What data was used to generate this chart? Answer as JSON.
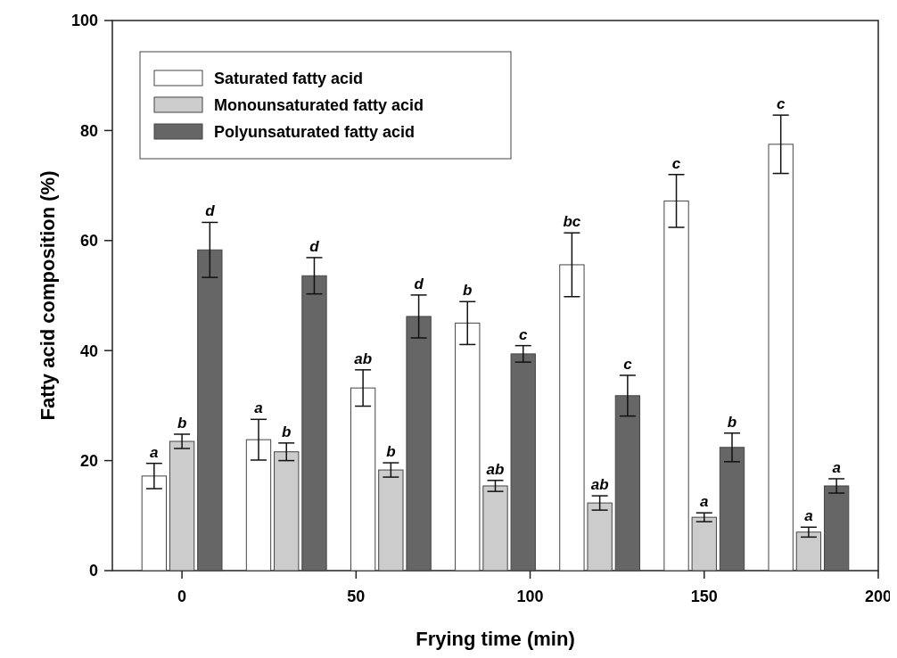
{
  "chart_data": {
    "type": "bar",
    "xlabel": "Frying time (min)",
    "ylabel": "Fatty acid composition (%)",
    "x": [
      0,
      30,
      60,
      90,
      120,
      150,
      180
    ],
    "xlim": [
      -20,
      200
    ],
    "xticks": [
      0,
      50,
      100,
      150,
      200
    ],
    "ylim": [
      0,
      100
    ],
    "yticks": [
      0,
      20,
      40,
      60,
      80,
      100
    ],
    "grid": false,
    "legend": "top left",
    "series": [
      {
        "name": "Saturated fatty acid",
        "color": "#ffffff",
        "values": [
          17.2,
          23.8,
          33.2,
          45.0,
          55.6,
          67.2,
          77.5
        ],
        "errors": [
          2.3,
          3.7,
          3.3,
          3.9,
          5.8,
          4.8,
          5.3
        ],
        "value_labels": [
          "a",
          "a",
          "ab",
          "b",
          "bc",
          "c",
          "c"
        ]
      },
      {
        "name": "Monounsaturated fatty acid",
        "color": "#cccccc",
        "values": [
          23.5,
          21.6,
          18.3,
          15.4,
          12.3,
          9.7,
          7.0
        ],
        "errors": [
          1.3,
          1.6,
          1.3,
          1.0,
          1.3,
          0.8,
          0.9
        ],
        "value_labels": [
          "b",
          "b",
          "b",
          "ab",
          "ab",
          "a",
          "a"
        ]
      },
      {
        "name": "Polyunsaturated fatty acid",
        "color": "#666666",
        "values": [
          58.3,
          53.6,
          46.2,
          39.4,
          31.8,
          22.4,
          15.4
        ],
        "errors": [
          5.0,
          3.3,
          3.9,
          1.5,
          3.7,
          2.6,
          1.3
        ],
        "value_labels": [
          "d",
          "d",
          "d",
          "c",
          "c",
          "b",
          "a"
        ]
      }
    ]
  }
}
